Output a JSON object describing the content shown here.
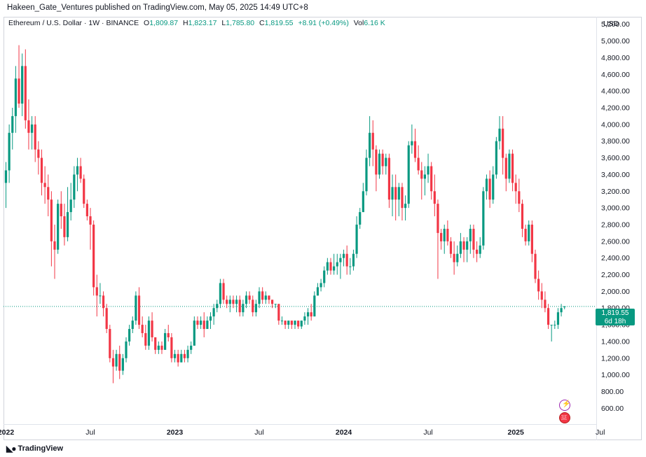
{
  "header": {
    "published": "Hakeen_Gate_Ventures published on TradingView.com, May 05, 2025 14:49 UTC+8"
  },
  "legend": {
    "symbol": "Ethereum / U.S. Dollar · 1W · BINANCE",
    "o_key": "O",
    "o_val": "1,809.87",
    "h_key": "H",
    "h_val": "1,823.17",
    "l_key": "L",
    "l_val": "1,785.80",
    "c_key": "C",
    "c_val": "1,819.55",
    "change": "+8.91 (+0.49%)",
    "vol_key": "Vol",
    "vol_val": "6.16 K"
  },
  "axis": {
    "currency": "USD"
  },
  "price_tag": {
    "price": "1,819.55",
    "countdown": "6d 18h"
  },
  "footer": {
    "brand": "TradingView"
  },
  "colors": {
    "up": "#089981",
    "down": "#f23645",
    "grid": "#e0e3eb",
    "last_line": "#089981"
  },
  "events": [
    {
      "icon": "lightning-event-icon"
    },
    {
      "icon": "us-flag-event-icon"
    }
  ],
  "chart_data": {
    "type": "candlestick",
    "symbol": "ETHUSD",
    "timeframe": "1W",
    "y_ticks": [
      "600.00",
      "800.00",
      "1,000.00",
      "1,200.00",
      "1,400.00",
      "1,600.00",
      "1,800.00",
      "2,000.00",
      "2,200.00",
      "2,400.00",
      "2,600.00",
      "2,800.00",
      "3,000.00",
      "3,200.00",
      "3,400.00",
      "3,600.00",
      "3,800.00",
      "4,000.00",
      "4,200.00",
      "4,400.00",
      "4,600.00",
      "4,800.00",
      "5,000.00",
      "5,200.00"
    ],
    "y_tick_values": [
      600,
      800,
      1000,
      1200,
      1400,
      1600,
      1800,
      2000,
      2200,
      2400,
      2600,
      2800,
      3000,
      3200,
      3400,
      3600,
      3800,
      4000,
      4200,
      4400,
      4600,
      4800,
      5000,
      5200
    ],
    "x_ticks": [
      "2022",
      "Jul",
      "2023",
      "Jul",
      "2024",
      "Jul",
      "2025",
      "Jul"
    ],
    "x_tick_bold": [
      true,
      false,
      true,
      false,
      true,
      false,
      true,
      false
    ],
    "x_tick_weeks": [
      0,
      26,
      52,
      78,
      104,
      130,
      157,
      183
    ],
    "ylim": [
      410,
      5290
    ],
    "grid": false,
    "last_price": 1819.55,
    "ohlc": [
      [
        3300,
        3550,
        3000,
        3450
      ],
      [
        3450,
        4000,
        3300,
        3900
      ],
      [
        3900,
        4200,
        3700,
        4100
      ],
      [
        4100,
        4700,
        3900,
        4550
      ],
      [
        4550,
        4950,
        4200,
        4250
      ],
      [
        4250,
        4850,
        4100,
        4700
      ],
      [
        4700,
        4900,
        3950,
        4050
      ],
      [
        4050,
        4300,
        3700,
        3900
      ],
      [
        3900,
        4100,
        3700,
        4000
      ],
      [
        4000,
        4100,
        3550,
        3700
      ],
      [
        3700,
        3800,
        3400,
        3600
      ],
      [
        3600,
        3700,
        3150,
        3300
      ],
      [
        3300,
        3500,
        3050,
        3250
      ],
      [
        3250,
        3400,
        2900,
        3100
      ],
      [
        3100,
        3200,
        2300,
        2600
      ],
      [
        2600,
        2800,
        2150,
        2500
      ],
      [
        2500,
        3100,
        2450,
        3050
      ],
      [
        3050,
        3200,
        2750,
        2900
      ],
      [
        2900,
        3050,
        2550,
        2650
      ],
      [
        2650,
        3250,
        2600,
        2950
      ],
      [
        2950,
        3300,
        2850,
        3100
      ],
      [
        3100,
        3500,
        3000,
        3400
      ],
      [
        3400,
        3600,
        3200,
        3500
      ],
      [
        3500,
        3600,
        3300,
        3350
      ],
      [
        3350,
        3400,
        3000,
        3050
      ],
      [
        3050,
        3100,
        2850,
        2900
      ],
      [
        2900,
        3000,
        2500,
        2800
      ],
      [
        2800,
        2850,
        1950,
        2050
      ],
      [
        2050,
        2200,
        1700,
        1950
      ],
      [
        1950,
        2100,
        1850,
        1950
      ],
      [
        1950,
        2000,
        1700,
        1800
      ],
      [
        1800,
        1850,
        1500,
        1550
      ],
      [
        1550,
        1600,
        1150,
        1200
      ],
      [
        1200,
        1300,
        900,
        1100
      ],
      [
        1100,
        1300,
        1050,
        1250
      ],
      [
        1250,
        1350,
        950,
        1050
      ],
      [
        1050,
        1250,
        1000,
        1200
      ],
      [
        1200,
        1450,
        1150,
        1400
      ],
      [
        1400,
        1600,
        1350,
        1550
      ],
      [
        1550,
        1700,
        1500,
        1650
      ],
      [
        1650,
        2000,
        1600,
        1950
      ],
      [
        1950,
        2050,
        1550,
        1600
      ],
      [
        1600,
        1700,
        1450,
        1500
      ],
      [
        1500,
        1600,
        1300,
        1350
      ],
      [
        1350,
        1700,
        1300,
        1650
      ],
      [
        1650,
        1750,
        1400,
        1450
      ],
      [
        1450,
        1450,
        1250,
        1300
      ],
      [
        1300,
        1400,
        1250,
        1350
      ],
      [
        1350,
        1400,
        1250,
        1300
      ],
      [
        1300,
        1550,
        1300,
        1500
      ],
      [
        1500,
        1600,
        1400,
        1450
      ],
      [
        1450,
        1500,
        1150,
        1200
      ],
      [
        1200,
        1300,
        1150,
        1250
      ],
      [
        1250,
        1300,
        1100,
        1150
      ],
      [
        1150,
        1300,
        1150,
        1250
      ],
      [
        1250,
        1300,
        1150,
        1200
      ],
      [
        1200,
        1350,
        1150,
        1300
      ],
      [
        1300,
        1400,
        1250,
        1350
      ],
      [
        1350,
        1700,
        1350,
        1650
      ],
      [
        1650,
        1700,
        1550,
        1600
      ],
      [
        1600,
        1700,
        1550,
        1650
      ],
      [
        1650,
        1750,
        1450,
        1550
      ],
      [
        1550,
        1700,
        1550,
        1650
      ],
      [
        1650,
        1750,
        1550,
        1700
      ],
      [
        1700,
        1850,
        1600,
        1800
      ],
      [
        1800,
        1900,
        1750,
        1850
      ],
      [
        1850,
        2150,
        1800,
        2100
      ],
      [
        2100,
        2150,
        1850,
        1900
      ],
      [
        1900,
        1950,
        1800,
        1850
      ],
      [
        1850,
        1950,
        1750,
        1900
      ],
      [
        1900,
        1950,
        1800,
        1850
      ],
      [
        1850,
        1950,
        1750,
        1900
      ],
      [
        1900,
        1950,
        1700,
        1750
      ],
      [
        1750,
        1900,
        1700,
        1850
      ],
      [
        1850,
        2000,
        1800,
        1950
      ],
      [
        1950,
        2000,
        1850,
        1900
      ],
      [
        1900,
        1950,
        1700,
        1750
      ],
      [
        1750,
        1900,
        1700,
        1850
      ],
      [
        1850,
        2050,
        1800,
        2000
      ],
      [
        2000,
        2050,
        1850,
        1900
      ],
      [
        1900,
        2000,
        1850,
        1950
      ],
      [
        1950,
        1950,
        1850,
        1900
      ],
      [
        1900,
        1900,
        1800,
        1850
      ],
      [
        1850,
        1850,
        1800,
        1850
      ],
      [
        1850,
        1850,
        1600,
        1650
      ],
      [
        1650,
        1700,
        1600,
        1650
      ],
      [
        1650,
        1650,
        1550,
        1600
      ],
      [
        1600,
        1650,
        1550,
        1650
      ],
      [
        1650,
        1650,
        1550,
        1600
      ],
      [
        1600,
        1650,
        1550,
        1650
      ],
      [
        1650,
        1650,
        1550,
        1580
      ],
      [
        1580,
        1650,
        1550,
        1650
      ],
      [
        1650,
        1750,
        1600,
        1700
      ],
      [
        1700,
        1800,
        1600,
        1750
      ],
      [
        1750,
        1850,
        1650,
        1700
      ],
      [
        1700,
        2000,
        1700,
        1950
      ],
      [
        1950,
        2100,
        1950,
        2050
      ],
      [
        2050,
        2150,
        2000,
        2100
      ],
      [
        2100,
        2300,
        2050,
        2250
      ],
      [
        2250,
        2400,
        2200,
        2350
      ],
      [
        2350,
        2400,
        2200,
        2250
      ],
      [
        2250,
        2450,
        2200,
        2300
      ],
      [
        2300,
        2450,
        2200,
        2350
      ],
      [
        2350,
        2450,
        2150,
        2400
      ],
      [
        2400,
        2500,
        2300,
        2450
      ],
      [
        2450,
        2550,
        2200,
        2300
      ],
      [
        2300,
        2400,
        2200,
        2300
      ],
      [
        2300,
        2500,
        2250,
        2450
      ],
      [
        2450,
        2900,
        2400,
        2800
      ],
      [
        2800,
        3000,
        2750,
        2950
      ],
      [
        2950,
        3300,
        2950,
        3200
      ],
      [
        3200,
        3700,
        3150,
        3600
      ],
      [
        3600,
        4100,
        3500,
        3900
      ],
      [
        3900,
        4050,
        3500,
        3700
      ],
      [
        3700,
        3750,
        3200,
        3400
      ],
      [
        3400,
        3700,
        3350,
        3650
      ],
      [
        3650,
        3700,
        3400,
        3500
      ],
      [
        3500,
        3650,
        3400,
        3600
      ],
      [
        3600,
        3650,
        3000,
        3100
      ],
      [
        3100,
        3400,
        2900,
        3250
      ],
      [
        3250,
        3400,
        2850,
        3100
      ],
      [
        3100,
        3300,
        2900,
        3250
      ],
      [
        3250,
        3300,
        2850,
        3000
      ],
      [
        3000,
        3150,
        2850,
        3050
      ],
      [
        3050,
        3800,
        3000,
        3750
      ],
      [
        3750,
        4000,
        3650,
        3800
      ],
      [
        3800,
        3950,
        3550,
        3600
      ],
      [
        3600,
        3750,
        3400,
        3450
      ],
      [
        3450,
        3550,
        3100,
        3350
      ],
      [
        3350,
        3500,
        3150,
        3400
      ],
      [
        3400,
        3650,
        3300,
        3500
      ],
      [
        3500,
        3550,
        3100,
        3200
      ],
      [
        3200,
        3400,
        2900,
        3050
      ],
      [
        3050,
        3100,
        2150,
        2700
      ],
      [
        2700,
        2750,
        2500,
        2600
      ],
      [
        2600,
        2800,
        2450,
        2750
      ],
      [
        2750,
        2850,
        2550,
        2600
      ],
      [
        2600,
        2650,
        2400,
        2450
      ],
      [
        2450,
        2600,
        2200,
        2350
      ],
      [
        2350,
        2550,
        2300,
        2450
      ],
      [
        2450,
        2700,
        2400,
        2600
      ],
      [
        2600,
        2650,
        2350,
        2500
      ],
      [
        2500,
        2650,
        2350,
        2600
      ],
      [
        2600,
        2800,
        2450,
        2750
      ],
      [
        2750,
        2800,
        2400,
        2500
      ],
      [
        2500,
        2600,
        2350,
        2450
      ],
      [
        2450,
        2650,
        2400,
        2550
      ],
      [
        2550,
        3250,
        2500,
        3200
      ],
      [
        3200,
        3400,
        3100,
        3350
      ],
      [
        3350,
        3450,
        3000,
        3100
      ],
      [
        3100,
        3500,
        3050,
        3400
      ],
      [
        3400,
        3850,
        3350,
        3800
      ],
      [
        3800,
        4100,
        3700,
        3950
      ],
      [
        3950,
        4100,
        3400,
        3600
      ],
      [
        3600,
        3650,
        3200,
        3350
      ],
      [
        3350,
        3700,
        3300,
        3650
      ],
      [
        3650,
        3700,
        3200,
        3300
      ],
      [
        3300,
        3400,
        3050,
        3200
      ],
      [
        3200,
        3350,
        2950,
        3050
      ],
      [
        3050,
        3100,
        2650,
        2750
      ],
      [
        2750,
        2800,
        2550,
        2600
      ],
      [
        2600,
        2850,
        2550,
        2800
      ],
      [
        2800,
        2850,
        2350,
        2450
      ],
      [
        2450,
        2500,
        2100,
        2150
      ],
      [
        2150,
        2250,
        1900,
        2000
      ],
      [
        2000,
        2100,
        1800,
        1900
      ],
      [
        1900,
        2000,
        1750,
        1800
      ],
      [
        1800,
        1850,
        1550,
        1600
      ],
      [
        1600,
        1600,
        1400,
        1600
      ],
      [
        1600,
        1650,
        1550,
        1600
      ],
      [
        1600,
        1800,
        1550,
        1750
      ],
      [
        1750,
        1850,
        1700,
        1800
      ],
      [
        1809.87,
        1823.17,
        1785.8,
        1819.55
      ]
    ]
  }
}
